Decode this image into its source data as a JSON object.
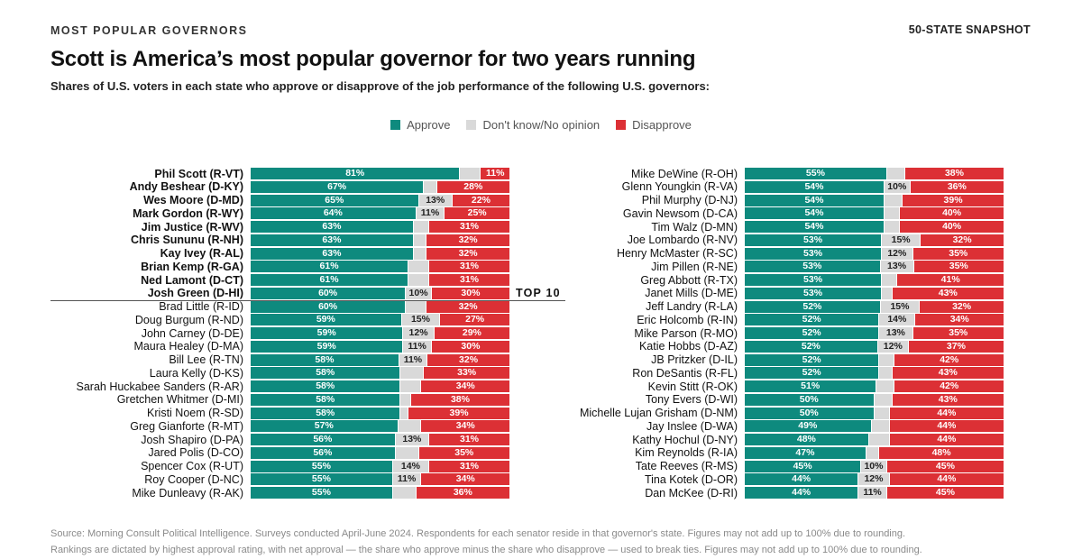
{
  "header": {
    "kicker": "MOST POPULAR GOVERNORS",
    "snapshot": "50-STATE SNAPSHOT",
    "title": "Scott is America’s most popular governor for two years running",
    "subtitle": "Shares of U.S. voters in each state who approve or disapprove of the job performance of the following U.S. governors:"
  },
  "legend": [
    {
      "label": "Approve",
      "color": "#0e8a7e"
    },
    {
      "label": "Don't know/No opinion",
      "color": "#d9d9d9"
    },
    {
      "label": "Disapprove",
      "color": "#dc3035"
    }
  ],
  "top10_label": "TOP 10",
  "chart_data": {
    "type": "bar",
    "stacked": true,
    "orientation": "horizontal",
    "xlim": [
      0,
      100
    ],
    "series": [
      {
        "name": "Approve",
        "color": "#0e8a7e"
      },
      {
        "name": "Don't know/No opinion",
        "color": "#d9d9d9"
      },
      {
        "name": "Disapprove",
        "color": "#dc3035"
      }
    ],
    "panels": [
      {
        "rows": [
          {
            "name": "Phil Scott (R-VT)",
            "approve": 81,
            "neutral": 8,
            "disapprove": 11,
            "bold": true
          },
          {
            "name": "Andy Beshear (D-KY)",
            "approve": 67,
            "neutral": 5,
            "disapprove": 28,
            "bold": true
          },
          {
            "name": "Wes Moore (D-MD)",
            "approve": 65,
            "neutral": 13,
            "disapprove": 22,
            "bold": true
          },
          {
            "name": "Mark Gordon (R-WY)",
            "approve": 64,
            "neutral": 11,
            "disapprove": 25,
            "bold": true
          },
          {
            "name": "Jim Justice (R-WV)",
            "approve": 63,
            "neutral": 6,
            "disapprove": 31,
            "bold": true
          },
          {
            "name": "Chris Sununu (R-NH)",
            "approve": 63,
            "neutral": 5,
            "disapprove": 32,
            "bold": true
          },
          {
            "name": "Kay Ivey (R-AL)",
            "approve": 63,
            "neutral": 5,
            "disapprove": 32,
            "bold": true
          },
          {
            "name": "Brian Kemp (R-GA)",
            "approve": 61,
            "neutral": 8,
            "disapprove": 31,
            "bold": true
          },
          {
            "name": "Ned Lamont (D-CT)",
            "approve": 61,
            "neutral": 8,
            "disapprove": 31,
            "bold": true
          },
          {
            "name": "Josh Green (D-HI)",
            "approve": 60,
            "neutral": 10,
            "disapprove": 30,
            "bold": true
          },
          {
            "name": "Brad Little (R-ID)",
            "approve": 60,
            "neutral": 8,
            "disapprove": 32,
            "bold": false
          },
          {
            "name": "Doug Burgum (R-ND)",
            "approve": 59,
            "neutral": 15,
            "disapprove": 27,
            "bold": false
          },
          {
            "name": "John Carney (D-DE)",
            "approve": 59,
            "neutral": 12,
            "disapprove": 29,
            "bold": false
          },
          {
            "name": "Maura Healey (D-MA)",
            "approve": 59,
            "neutral": 11,
            "disapprove": 30,
            "bold": false
          },
          {
            "name": "Bill Lee (R-TN)",
            "approve": 58,
            "neutral": 11,
            "disapprove": 32,
            "bold": false
          },
          {
            "name": "Laura Kelly (D-KS)",
            "approve": 58,
            "neutral": 9,
            "disapprove": 33,
            "bold": false
          },
          {
            "name": "Sarah Huckabee Sanders (R-AR)",
            "approve": 58,
            "neutral": 8,
            "disapprove": 34,
            "bold": false
          },
          {
            "name": "Gretchen Whitmer (D-MI)",
            "approve": 58,
            "neutral": 4,
            "disapprove": 38,
            "bold": false
          },
          {
            "name": "Kristi Noem (R-SD)",
            "approve": 58,
            "neutral": 3,
            "disapprove": 39,
            "bold": false
          },
          {
            "name": "Greg Gianforte (R-MT)",
            "approve": 57,
            "neutral": 9,
            "disapprove": 34,
            "bold": false
          },
          {
            "name": "Josh Shapiro (D-PA)",
            "approve": 56,
            "neutral": 13,
            "disapprove": 31,
            "bold": false
          },
          {
            "name": "Jared Polis (D-CO)",
            "approve": 56,
            "neutral": 9,
            "disapprove": 35,
            "bold": false
          },
          {
            "name": "Spencer Cox (R-UT)",
            "approve": 55,
            "neutral": 14,
            "disapprove": 31,
            "bold": false
          },
          {
            "name": "Roy Cooper (D-NC)",
            "approve": 55,
            "neutral": 11,
            "disapprove": 34,
            "bold": false
          },
          {
            "name": "Mike Dunleavy (R-AK)",
            "approve": 55,
            "neutral": 9,
            "disapprove": 36,
            "bold": false
          }
        ]
      },
      {
        "rows": [
          {
            "name": "Mike DeWine (R-OH)",
            "approve": 55,
            "neutral": 7,
            "disapprove": 38,
            "bold": false
          },
          {
            "name": "Glenn Youngkin (R-VA)",
            "approve": 54,
            "neutral": 10,
            "disapprove": 36,
            "bold": false
          },
          {
            "name": "Phil Murphy (D-NJ)",
            "approve": 54,
            "neutral": 7,
            "disapprove": 39,
            "bold": false
          },
          {
            "name": "Gavin Newsom (D-CA)",
            "approve": 54,
            "neutral": 6,
            "disapprove": 40,
            "bold": false
          },
          {
            "name": "Tim Walz (D-MN)",
            "approve": 54,
            "neutral": 6,
            "disapprove": 40,
            "bold": false
          },
          {
            "name": "Joe Lombardo (R-NV)",
            "approve": 53,
            "neutral": 15,
            "disapprove": 32,
            "bold": false
          },
          {
            "name": "Henry McMaster (R-SC)",
            "approve": 53,
            "neutral": 12,
            "disapprove": 35,
            "bold": false
          },
          {
            "name": "Jim Pillen (R-NE)",
            "approve": 53,
            "neutral": 13,
            "disapprove": 35,
            "bold": false
          },
          {
            "name": "Greg Abbott (R-TX)",
            "approve": 53,
            "neutral": 6,
            "disapprove": 41,
            "bold": false
          },
          {
            "name": "Janet Mills (D-ME)",
            "approve": 53,
            "neutral": 4,
            "disapprove": 43,
            "bold": false
          },
          {
            "name": "Jeff Landry (R-LA)",
            "approve": 52,
            "neutral": 15,
            "disapprove": 32,
            "bold": false
          },
          {
            "name": "Eric Holcomb (R-IN)",
            "approve": 52,
            "neutral": 14,
            "disapprove": 34,
            "bold": false
          },
          {
            "name": "Mike Parson (R-MO)",
            "approve": 52,
            "neutral": 13,
            "disapprove": 35,
            "bold": false
          },
          {
            "name": "Katie Hobbs (D-AZ)",
            "approve": 52,
            "neutral": 12,
            "disapprove": 37,
            "bold": false
          },
          {
            "name": "JB Pritzker (D-IL)",
            "approve": 52,
            "neutral": 6,
            "disapprove": 42,
            "bold": false
          },
          {
            "name": "Ron DeSantis (R-FL)",
            "approve": 52,
            "neutral": 5,
            "disapprove": 43,
            "bold": false
          },
          {
            "name": "Kevin Stitt (R-OK)",
            "approve": 51,
            "neutral": 7,
            "disapprove": 42,
            "bold": false
          },
          {
            "name": "Tony Evers (D-WI)",
            "approve": 50,
            "neutral": 7,
            "disapprove": 43,
            "bold": false
          },
          {
            "name": "Michelle Lujan Grisham (D-NM)",
            "approve": 50,
            "neutral": 6,
            "disapprove": 44,
            "bold": false
          },
          {
            "name": "Jay Inslee (D-WA)",
            "approve": 49,
            "neutral": 7,
            "disapprove": 44,
            "bold": false
          },
          {
            "name": "Kathy Hochul (D-NY)",
            "approve": 48,
            "neutral": 8,
            "disapprove": 44,
            "bold": false
          },
          {
            "name": "Kim Reynolds (R-IA)",
            "approve": 47,
            "neutral": 5,
            "disapprove": 48,
            "bold": false
          },
          {
            "name": "Tate Reeves (R-MS)",
            "approve": 45,
            "neutral": 10,
            "disapprove": 45,
            "bold": false
          },
          {
            "name": "Tina Kotek (D-OR)",
            "approve": 44,
            "neutral": 12,
            "disapprove": 44,
            "bold": false
          },
          {
            "name": "Dan McKee (D-RI)",
            "approve": 44,
            "neutral": 11,
            "disapprove": 45,
            "bold": false
          }
        ]
      }
    ]
  },
  "footnotes": [
    "Source: Morning Consult Political Intelligence. Surveys conducted April-June 2024. Respondents for each senator reside in that governor's state. Figures may not add up to 100% due to rounding.",
    "Rankings are dictated by highest approval rating, with net approval — the share who approve minus the share who disapprove — used to break ties. Figures may not add up to 100% due to rounding."
  ]
}
